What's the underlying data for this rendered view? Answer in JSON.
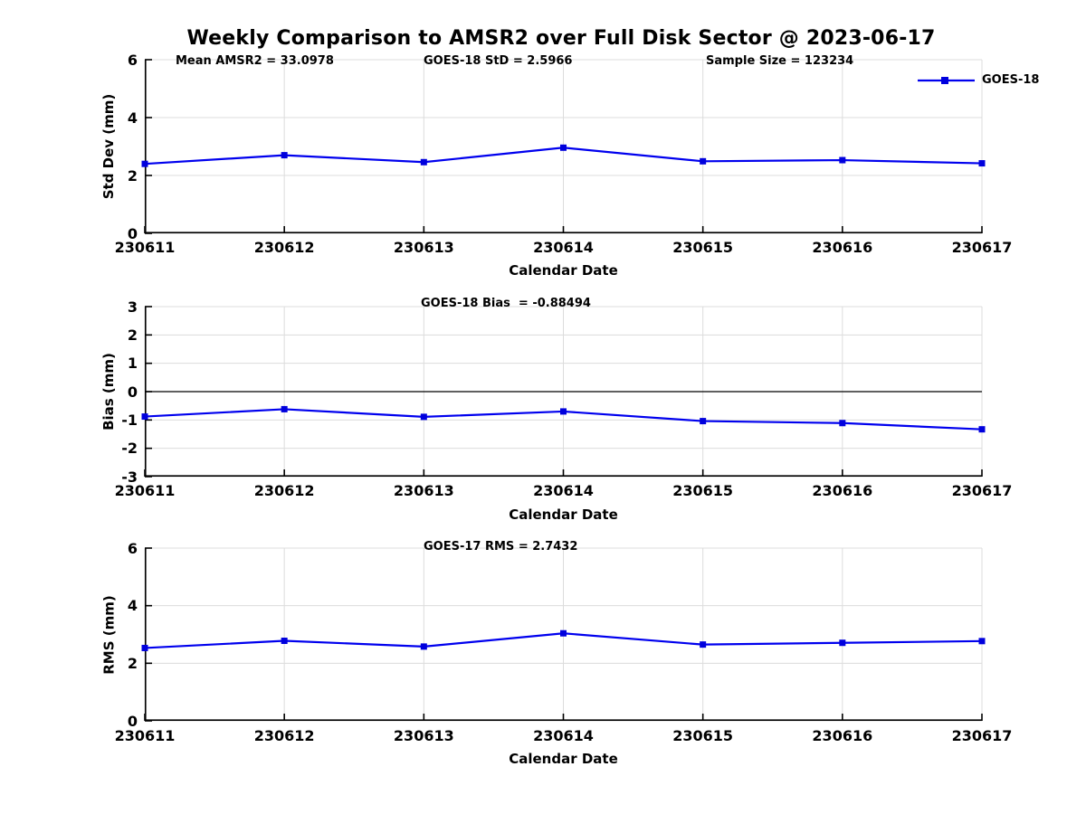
{
  "title": "Weekly Comparison to AMSR2 over Full Disk Sector @ 2023-06-17",
  "legend": {
    "label": "GOES-18"
  },
  "colors": {
    "line": "#0000EE",
    "marker": "#0000DD",
    "grid": "#DCDCDC",
    "axis": "#000000",
    "zero_line": "#000000",
    "background": "#FFFFFF",
    "text": "#000000"
  },
  "chart_data": [
    {
      "type": "line",
      "categories": [
        "230611",
        "230612",
        "230613",
        "230614",
        "230615",
        "230616",
        "230617"
      ],
      "series": [
        {
          "name": "GOES-18",
          "values": [
            2.4,
            2.7,
            2.46,
            2.96,
            2.49,
            2.53,
            2.42
          ]
        }
      ],
      "annotations": [
        "Mean AMSR2 = 33.0978",
        "GOES-18 StD = 2.5966",
        "Sample Size = 123234"
      ],
      "xlabel": "Calendar Date",
      "ylabel": "Std Dev (mm)",
      "ylim": [
        0,
        6
      ],
      "yticks": [
        0,
        2,
        4,
        6
      ],
      "grid": true,
      "zero_line": false,
      "legend_position": "northeast",
      "legend_entries": [
        "GOES-18"
      ]
    },
    {
      "type": "line",
      "categories": [
        "230611",
        "230612",
        "230613",
        "230614",
        "230615",
        "230616",
        "230617"
      ],
      "series": [
        {
          "name": "GOES-18",
          "values": [
            -0.88,
            -0.62,
            -0.89,
            -0.7,
            -1.04,
            -1.11,
            -1.33
          ]
        }
      ],
      "annotations": [
        "GOES-18 Bias  = -0.88494"
      ],
      "xlabel": "Calendar Date",
      "ylabel": "Bias (mm)",
      "ylim": [
        -3,
        3
      ],
      "yticks": [
        -3,
        -2,
        -1,
        0,
        1,
        2,
        3
      ],
      "grid": true,
      "zero_line": true,
      "legend_position": "none"
    },
    {
      "type": "line",
      "categories": [
        "230611",
        "230612",
        "230613",
        "230614",
        "230615",
        "230616",
        "230617"
      ],
      "series": [
        {
          "name": "GOES-18",
          "values": [
            2.53,
            2.78,
            2.58,
            3.04,
            2.65,
            2.71,
            2.77
          ]
        }
      ],
      "annotations": [
        "GOES-17 RMS = 2.7432"
      ],
      "xlabel": "Calendar Date",
      "ylabel": "RMS (mm)",
      "ylim": [
        0,
        6
      ],
      "yticks": [
        0,
        2,
        4,
        6
      ],
      "grid": true,
      "zero_line": false,
      "legend_position": "none"
    }
  ]
}
